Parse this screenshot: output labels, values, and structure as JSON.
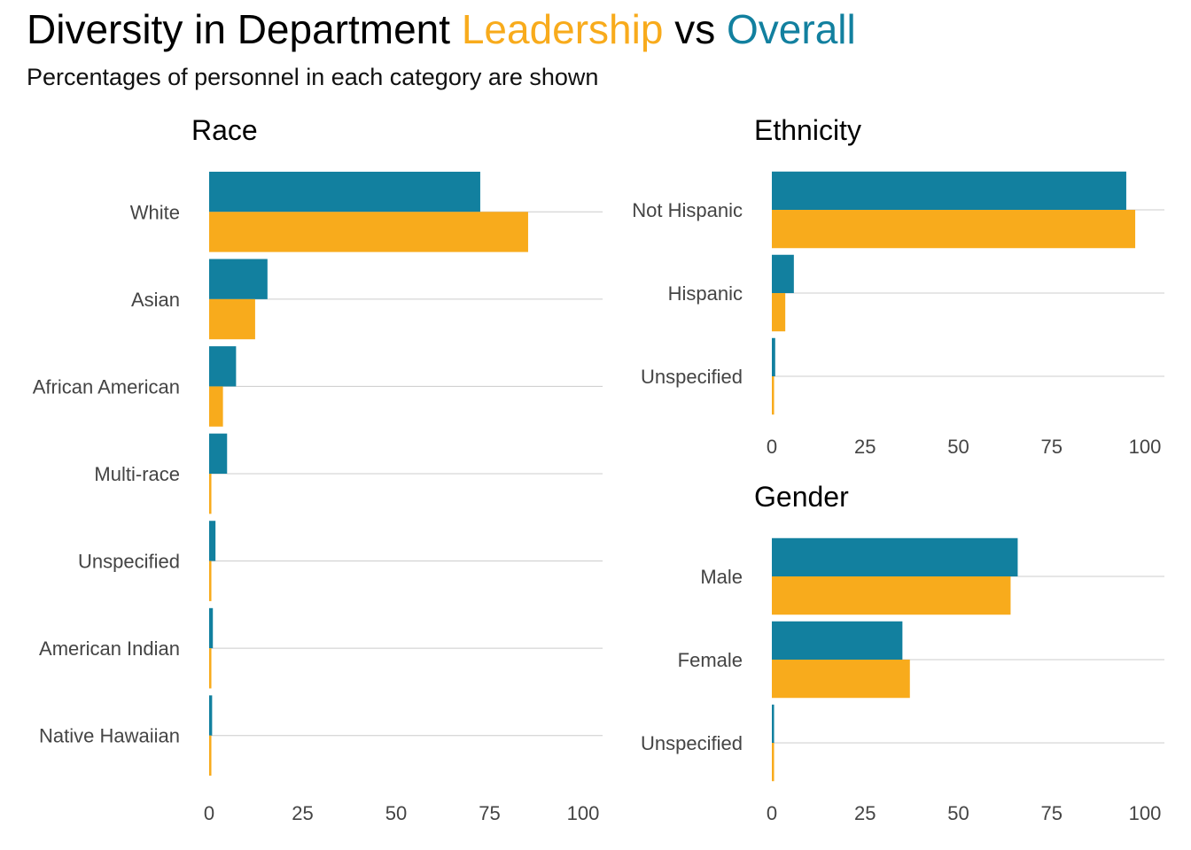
{
  "title": {
    "prefix": "Diversity in Department ",
    "leadership": "Leadership",
    "middle": " vs ",
    "overall": "Overall"
  },
  "subtitle": "Percentages of personnel in each category are shown",
  "colors": {
    "leadership": "#F8AB1C",
    "overall": "#12809F"
  },
  "chart_data": [
    {
      "type": "bar",
      "orientation": "horizontal",
      "title": "Race",
      "categories": [
        "White",
        "Asian",
        "African American",
        "Multi-race",
        "Unspecified",
        "American Indian",
        "Native Hawaiian"
      ],
      "series": [
        {
          "name": "Overall",
          "color": "#12809F",
          "values": [
            72.5,
            15.6,
            7.2,
            4.8,
            1.7,
            1.0,
            0.8
          ]
        },
        {
          "name": "Leadership",
          "color": "#F8AB1C",
          "values": [
            85.3,
            12.3,
            3.7,
            0.6,
            0.6,
            0.6,
            0.6
          ]
        }
      ],
      "xlim": [
        0,
        100
      ],
      "xticks": [
        "0",
        "25",
        "50",
        "75",
        "100"
      ],
      "grid": true
    },
    {
      "type": "bar",
      "orientation": "horizontal",
      "title": "Ethnicity",
      "categories": [
        "Not Hispanic",
        "Hispanic",
        "Unspecified"
      ],
      "series": [
        {
          "name": "Overall",
          "color": "#12809F",
          "values": [
            95.0,
            5.9,
            0.9
          ]
        },
        {
          "name": "Leadership",
          "color": "#F8AB1C",
          "values": [
            97.4,
            3.6,
            0.6
          ]
        }
      ],
      "xlim": [
        0,
        100
      ],
      "xticks": [
        "0",
        "25",
        "50",
        "75",
        "100"
      ],
      "grid": true
    },
    {
      "type": "bar",
      "orientation": "horizontal",
      "title": "Gender",
      "categories": [
        "Male",
        "Female",
        "Unspecified"
      ],
      "series": [
        {
          "name": "Overall",
          "color": "#12809F",
          "values": [
            65.9,
            35.0,
            0.6
          ]
        },
        {
          "name": "Leadership",
          "color": "#F8AB1C",
          "values": [
            64.0,
            37.0,
            0.6
          ]
        }
      ],
      "xlim": [
        0,
        100
      ],
      "xticks": [
        "0",
        "25",
        "50",
        "75",
        "100"
      ],
      "grid": true
    }
  ]
}
